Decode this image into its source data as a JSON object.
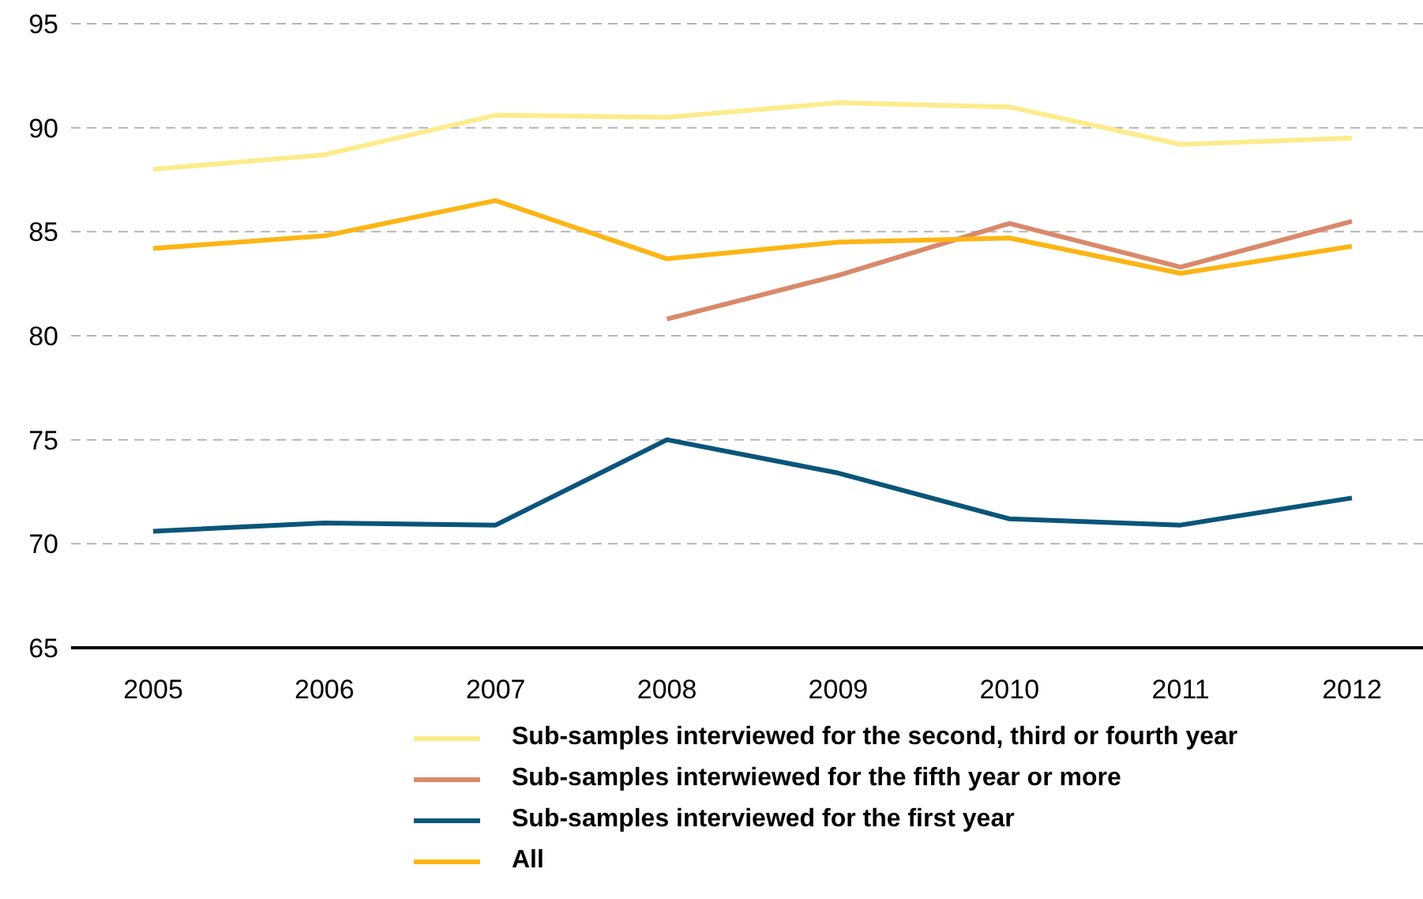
{
  "chart_data": {
    "type": "line",
    "categories": [
      "2005",
      "2006",
      "2007",
      "2008",
      "2009",
      "2010",
      "2011",
      "2012"
    ],
    "series": [
      {
        "name": "Sub-samples interviewed for the second, third or fourth year",
        "color": "#fcec8c",
        "values": [
          88.0,
          88.7,
          90.6,
          90.5,
          91.2,
          91.0,
          89.2,
          89.5
        ]
      },
      {
        "name": "Sub-samples interwiewed for the fifth year or more",
        "color": "#d9896a",
        "values": [
          null,
          null,
          null,
          80.8,
          82.9,
          85.4,
          83.3,
          85.5
        ]
      },
      {
        "name": "Sub-samples interviewed for the first year",
        "color": "#0b5579",
        "values": [
          70.6,
          71.0,
          70.9,
          75.0,
          73.4,
          71.2,
          70.9,
          72.2
        ]
      },
      {
        "name": "All",
        "color": "#fdb515",
        "values": [
          84.2,
          84.8,
          86.5,
          83.7,
          84.5,
          84.7,
          83.0,
          84.3
        ]
      }
    ],
    "ylim": [
      65,
      95
    ],
    "yticks": [
      65,
      70,
      75,
      80,
      85,
      90,
      95
    ],
    "grid": "y",
    "legend": "bottom"
  }
}
